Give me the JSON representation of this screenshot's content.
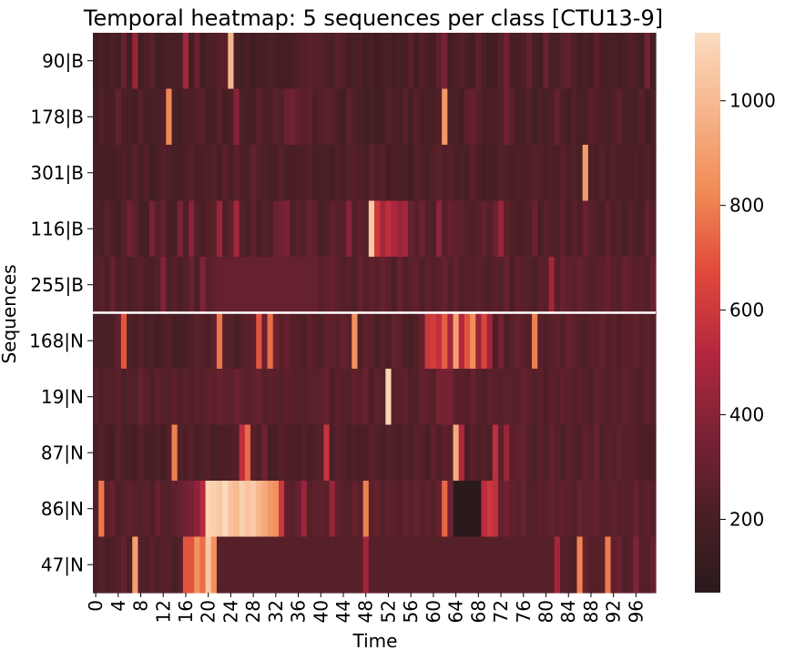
{
  "chart_data": {
    "type": "heatmap",
    "title": "Temporal heatmap: 5 sequences per class [CTU13-9]",
    "xlabel": "Time",
    "ylabel": "Sequences",
    "row_labels": [
      "90|B",
      "178|B",
      "301|B",
      "116|B",
      "255|B",
      "168|N",
      "19|N",
      "87|N",
      "86|N",
      "47|N"
    ],
    "x_tick_labels": [
      "0",
      "4",
      "8",
      "12",
      "16",
      "20",
      "24",
      "28",
      "32",
      "36",
      "40",
      "44",
      "48",
      "52",
      "56",
      "60",
      "64",
      "68",
      "72",
      "76",
      "80",
      "84",
      "88",
      "92",
      "96"
    ],
    "n_time_steps": 100,
    "class_separator_after_row": 4,
    "colorbar": {
      "min": 60,
      "max": 1130,
      "ticks": [
        200,
        400,
        600,
        800,
        1000
      ],
      "colormap": [
        "#2a1a1c",
        "#4a1f25",
        "#7a2235",
        "#b4283f",
        "#e0483a",
        "#f08a55",
        "#f6b48a",
        "#fbdcc0"
      ]
    },
    "values": [
      [
        160,
        210,
        180,
        230,
        190,
        310,
        180,
        450,
        170,
        230,
        260,
        170,
        190,
        220,
        210,
        200,
        470,
        180,
        310,
        170,
        220,
        230,
        250,
        260,
        990,
        200,
        180,
        220,
        160,
        210,
        200,
        230,
        200,
        180,
        190,
        200,
        230,
        240,
        260,
        260,
        250,
        230,
        220,
        260,
        240,
        190,
        200,
        230,
        180,
        210,
        160,
        200,
        220,
        180,
        200,
        210,
        270,
        180,
        250,
        200,
        190,
        280,
        350,
        190,
        220,
        240,
        210,
        190,
        280,
        220,
        170,
        190,
        250,
        340,
        200,
        210,
        230,
        290,
        200,
        190,
        310,
        200,
        210,
        260,
        280,
        230,
        170,
        220,
        180,
        270,
        210,
        200,
        220,
        180,
        200,
        240,
        210,
        190,
        350,
        180
      ],
      [
        180,
        240,
        200,
        210,
        300,
        220,
        200,
        190,
        250,
        200,
        200,
        220,
        230,
        820,
        210,
        180,
        220,
        230,
        240,
        260,
        200,
        210,
        250,
        190,
        220,
        400,
        230,
        210,
        200,
        260,
        230,
        220,
        260,
        240,
        310,
        340,
        290,
        260,
        280,
        220,
        240,
        260,
        250,
        210,
        190,
        270,
        230,
        200,
        180,
        210,
        170,
        190,
        240,
        220,
        200,
        260,
        190,
        250,
        210,
        220,
        200,
        240,
        870,
        210,
        230,
        190,
        280,
        300,
        260,
        200,
        220,
        210,
        240,
        330,
        260,
        190,
        210,
        240,
        180,
        220,
        200,
        230,
        300,
        220,
        190,
        240,
        200,
        210,
        260,
        240,
        220,
        200,
        230,
        280,
        220,
        210,
        200,
        250,
        190,
        220
      ],
      [
        200,
        180,
        210,
        190,
        220,
        230,
        200,
        260,
        200,
        240,
        180,
        210,
        250,
        230,
        200,
        210,
        220,
        240,
        200,
        210,
        230,
        250,
        200,
        260,
        210,
        270,
        230,
        220,
        290,
        240,
        230,
        210,
        200,
        250,
        200,
        210,
        220,
        230,
        240,
        210,
        200,
        220,
        190,
        230,
        200,
        240,
        250,
        230,
        210,
        270,
        220,
        250,
        190,
        230,
        220,
        200,
        180,
        240,
        220,
        200,
        240,
        260,
        230,
        250,
        210,
        230,
        200,
        270,
        220,
        190,
        210,
        200,
        240,
        230,
        200,
        230,
        210,
        220,
        250,
        240,
        200,
        230,
        210,
        260,
        220,
        240,
        200,
        890,
        230,
        210,
        250,
        200,
        240,
        210,
        220,
        200,
        230,
        210,
        240,
        220
      ],
      [
        230,
        200,
        260,
        220,
        180,
        250,
        330,
        270,
        200,
        190,
        350,
        250,
        290,
        200,
        210,
        360,
        230,
        400,
        240,
        210,
        240,
        270,
        450,
        230,
        280,
        470,
        240,
        210,
        280,
        220,
        240,
        230,
        310,
        340,
        360,
        230,
        260,
        240,
        310,
        270,
        200,
        230,
        280,
        260,
        250,
        400,
        240,
        280,
        250,
        1050,
        600,
        480,
        550,
        500,
        450,
        470,
        300,
        260,
        330,
        240,
        230,
        410,
        250,
        310,
        280,
        270,
        240,
        230,
        260,
        290,
        240,
        310,
        440,
        270,
        230,
        200,
        220,
        240,
        310,
        210,
        260,
        240,
        230,
        280,
        220,
        260,
        220,
        310,
        260,
        240,
        210,
        280,
        230,
        240,
        200,
        250,
        230,
        210,
        290,
        240
      ],
      [
        240,
        260,
        220,
        300,
        230,
        250,
        200,
        240,
        260,
        220,
        200,
        240,
        380,
        230,
        260,
        210,
        240,
        300,
        220,
        380,
        260,
        280,
        300,
        300,
        300,
        300,
        300,
        300,
        300,
        300,
        300,
        300,
        300,
        300,
        300,
        300,
        300,
        300,
        300,
        300,
        260,
        280,
        300,
        270,
        240,
        260,
        230,
        300,
        240,
        280,
        260,
        300,
        270,
        220,
        300,
        240,
        260,
        280,
        230,
        280,
        240,
        260,
        300,
        240,
        290,
        230,
        260,
        250,
        270,
        240,
        230,
        260,
        240,
        300,
        220,
        280,
        260,
        240,
        220,
        270,
        250,
        460,
        240,
        300,
        280,
        260,
        300,
        270,
        240,
        260,
        270,
        300,
        260,
        240,
        300,
        280,
        260,
        270,
        240,
        300
      ],
      [
        230,
        200,
        210,
        220,
        280,
        700,
        230,
        210,
        250,
        200,
        230,
        190,
        220,
        240,
        180,
        200,
        210,
        230,
        260,
        240,
        220,
        290,
        780,
        240,
        250,
        200,
        240,
        270,
        280,
        700,
        320,
        760,
        310,
        260,
        300,
        250,
        240,
        230,
        280,
        240,
        230,
        280,
        270,
        250,
        290,
        260,
        850,
        230,
        280,
        260,
        210,
        250,
        220,
        300,
        270,
        230,
        200,
        240,
        310,
        600,
        620,
        560,
        720,
        480,
        900,
        520,
        700,
        840,
        440,
        650,
        460,
        230,
        340,
        220,
        260,
        300,
        260,
        240,
        800,
        250,
        230,
        260,
        280,
        240,
        300,
        270,
        240,
        230,
        260,
        250,
        290,
        240,
        270,
        230,
        260,
        250,
        280,
        240,
        270,
        250
      ],
      [
        250,
        230,
        260,
        240,
        270,
        220,
        250,
        240,
        300,
        260,
        230,
        270,
        250,
        240,
        280,
        230,
        260,
        240,
        270,
        250,
        280,
        260,
        300,
        280,
        270,
        320,
        290,
        260,
        280,
        300,
        250,
        270,
        260,
        240,
        280,
        260,
        250,
        240,
        270,
        260,
        280,
        300,
        230,
        270,
        250,
        240,
        280,
        260,
        300,
        230,
        280,
        250,
        1100,
        250,
        260,
        280,
        230,
        240,
        300,
        280,
        260,
        350,
        350,
        350,
        270,
        260,
        240,
        300,
        250,
        230,
        280,
        260,
        240,
        270,
        260,
        250,
        300,
        280,
        240,
        260,
        230,
        270,
        250,
        280,
        260,
        240,
        270,
        250,
        230,
        280,
        260,
        240,
        270,
        250,
        280,
        260,
        240,
        230,
        280,
        250
      ],
      [
        200,
        240,
        210,
        180,
        260,
        220,
        200,
        190,
        240,
        210,
        200,
        230,
        180,
        250,
        800,
        240,
        220,
        260,
        210,
        230,
        240,
        200,
        210,
        230,
        220,
        240,
        550,
        750,
        260,
        220,
        340,
        200,
        210,
        260,
        230,
        220,
        200,
        240,
        210,
        230,
        250,
        580,
        220,
        260,
        240,
        210,
        230,
        200,
        220,
        260,
        240,
        210,
        250,
        230,
        200,
        240,
        220,
        260,
        240,
        210,
        280,
        230,
        280,
        250,
        940,
        500,
        210,
        260,
        230,
        250,
        220,
        550,
        280,
        450,
        260,
        280,
        300,
        240,
        220,
        260,
        230,
        290,
        250,
        220,
        260,
        240,
        230,
        280,
        250,
        300,
        230,
        260,
        240,
        280,
        250,
        260,
        240,
        230,
        220,
        210
      ],
      [
        240,
        780,
        260,
        300,
        230,
        250,
        280,
        260,
        240,
        270,
        230,
        310,
        250,
        240,
        280,
        300,
        340,
        360,
        410,
        520,
        1100,
        1080,
        1050,
        1120,
        1030,
        1000,
        1080,
        1040,
        1060,
        980,
        940,
        880,
        850,
        600,
        280,
        260,
        300,
        450,
        240,
        280,
        280,
        260,
        440,
        280,
        250,
        240,
        300,
        260,
        800,
        270,
        300,
        250,
        280,
        260,
        240,
        290,
        270,
        300,
        260,
        280,
        250,
        300,
        740,
        340,
        60,
        60,
        60,
        60,
        60,
        540,
        600,
        560,
        300,
        340,
        280,
        260,
        300,
        250,
        240,
        270,
        260,
        290,
        260,
        280,
        260,
        240,
        300,
        260,
        270,
        300,
        250,
        260,
        280,
        240,
        270,
        260,
        300,
        240,
        280,
        260
      ],
      [
        220,
        240,
        200,
        230,
        250,
        300,
        210,
        900,
        240,
        220,
        260,
        230,
        250,
        250,
        200,
        240,
        700,
        700,
        860,
        760,
        1050,
        850,
        250,
        250,
        250,
        250,
        250,
        250,
        250,
        250,
        250,
        250,
        250,
        250,
        250,
        250,
        250,
        250,
        250,
        250,
        250,
        250,
        250,
        250,
        250,
        250,
        250,
        250,
        460,
        250,
        250,
        250,
        250,
        250,
        250,
        250,
        250,
        250,
        250,
        250,
        250,
        250,
        250,
        250,
        250,
        250,
        250,
        250,
        250,
        250,
        250,
        250,
        250,
        250,
        250,
        250,
        250,
        250,
        250,
        250,
        250,
        250,
        480,
        250,
        240,
        220,
        810,
        300,
        250,
        240,
        260,
        790,
        280,
        320,
        230,
        250,
        380,
        250,
        240,
        300
      ]
    ]
  }
}
